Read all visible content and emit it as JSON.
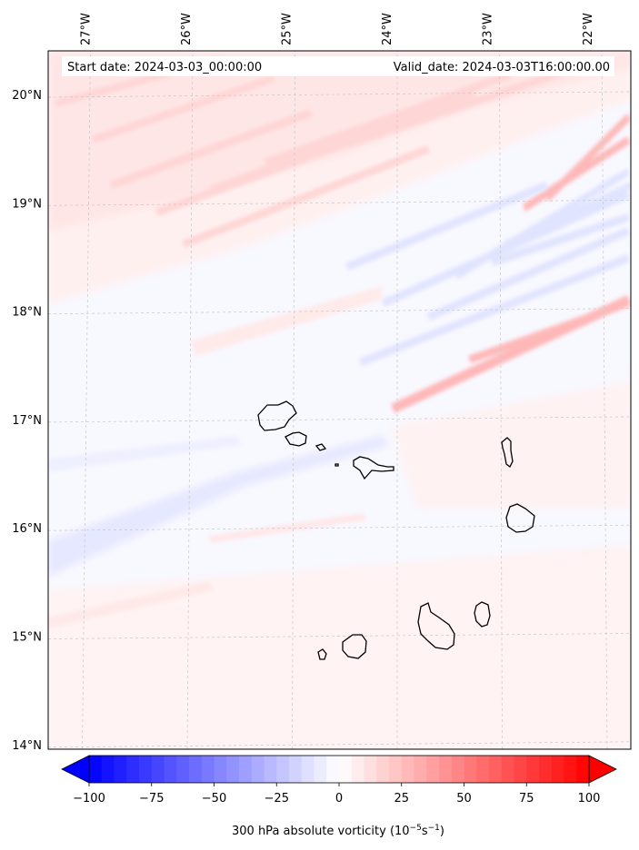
{
  "header": {
    "start_label": "Start date: 2024-03-03_00:00:00",
    "valid_label": "Valid_date: 2024-03-03T16:00:00.00"
  },
  "map": {
    "lon_labels": [
      "27°W",
      "26°W",
      "25°W",
      "24°W",
      "23°W",
      "22°W"
    ],
    "lat_labels": [
      "20°N",
      "19°N",
      "18°N",
      "17°N",
      "16°N",
      "15°N",
      "14°N"
    ],
    "lon_values": [
      -27,
      -26,
      -25,
      -24,
      -23,
      -22
    ],
    "lat_values": [
      20,
      19,
      18,
      17,
      16,
      15,
      14
    ],
    "grid": true
  },
  "colorbar": {
    "min": -100,
    "max": 100,
    "ticks": [
      -100,
      -75,
      -50,
      -25,
      0,
      25,
      50,
      75,
      100
    ],
    "tick_labels": [
      "−100",
      "−75",
      "−50",
      "−25",
      "0",
      "25",
      "50",
      "75",
      "100"
    ],
    "colormap": "bwr",
    "color_low": "#0000ff",
    "color_mid": "#ffffff",
    "color_high": "#ff0000",
    "extend": "both",
    "label": "300 hPa absolute vorticity (10",
    "label_exp1": "−5",
    "label_mid": "s",
    "label_exp2": "−1",
    "label_end": ")"
  },
  "islands": [
    "Santo Antão",
    "São Vicente",
    "Santa Luzia",
    "Branco",
    "São Nicolau",
    "Sal",
    "Boa Vista",
    "Maio",
    "Santiago",
    "Fogo",
    "Brava"
  ]
}
